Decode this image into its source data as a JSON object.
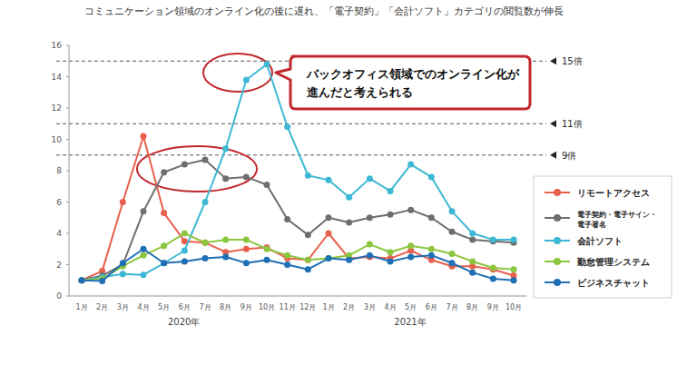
{
  "chart_data": {
    "type": "line",
    "title": "コミュニケーション領域のオンライン化の後に遅れ、「電子契約」「会計ソフト」カテゴリの閲覧数が伸長",
    "categories": [
      "1月",
      "2月",
      "3月",
      "4月",
      "5月",
      "6月",
      "7月",
      "8月",
      "9月",
      "10月",
      "11月",
      "12月",
      "1月",
      "2月",
      "3月",
      "4月",
      "5月",
      "6月",
      "7月",
      "8月",
      "9月",
      "10月"
    ],
    "x_groups": [
      {
        "label": "2020年",
        "from": 0,
        "to": 11
      },
      {
        "label": "2021年",
        "from": 12,
        "to": 21
      }
    ],
    "series": [
      {
        "name": "リモートアクセス",
        "color": "#e8604c",
        "marker": "circle",
        "values": [
          1,
          1.6,
          6,
          10.2,
          5.3,
          3.5,
          3.4,
          2.8,
          3.0,
          3.1,
          2.4,
          2.3,
          4.0,
          2.4,
          2.5,
          2.4,
          2.9,
          2.3,
          1.9,
          1.9,
          1.7,
          1.3
        ]
      },
      {
        "name": "電子契約・電子サイン・電子署名",
        "color": "#6e6e6e",
        "marker": "circle",
        "values": [
          1,
          1.3,
          2.0,
          5.4,
          7.9,
          8.4,
          8.7,
          7.5,
          7.6,
          7.1,
          4.9,
          3.9,
          5.0,
          4.7,
          5.0,
          5.2,
          5.5,
          5.0,
          4.1,
          3.6,
          3.5,
          3.4
        ]
      },
      {
        "name": "会計ソフト",
        "color": "#3db8d4",
        "marker": "circle",
        "values": [
          1,
          1.2,
          1.4,
          1.35,
          2.1,
          2.9,
          6.0,
          9.4,
          13.8,
          14.8,
          10.8,
          7.7,
          7.4,
          6.3,
          7.5,
          6.7,
          8.4,
          7.6,
          5.4,
          4.0,
          3.6,
          3.6
        ]
      },
      {
        "name": "勤怠管理システム",
        "color": "#8cc63f",
        "marker": "circle",
        "values": [
          1,
          1.1,
          1.9,
          2.6,
          3.2,
          4.0,
          3.4,
          3.6,
          3.6,
          3.0,
          2.6,
          2.3,
          2.4,
          2.6,
          3.3,
          2.8,
          3.2,
          3.0,
          2.7,
          2.2,
          1.8,
          1.7
        ]
      },
      {
        "name": "ビジネスチャット",
        "color": "#1f6fb5",
        "marker": "circle",
        "values": [
          1,
          0.95,
          2.1,
          3.0,
          2.1,
          2.2,
          2.4,
          2.5,
          2.1,
          2.3,
          2.0,
          1.7,
          2.4,
          2.3,
          2.6,
          2.2,
          2.5,
          2.6,
          2.1,
          1.5,
          1.1,
          1.0
        ]
      }
    ],
    "ylim": [
      0,
      16
    ],
    "yticks": [
      0,
      2,
      4,
      6,
      8,
      10,
      12,
      14,
      16
    ],
    "grid": false,
    "legend": "right",
    "reference_lines": [
      {
        "value": 15,
        "label": "15倍",
        "line_style": "dashed"
      },
      {
        "value": 11,
        "label": "11倍",
        "line_style": "dashed"
      },
      {
        "value": 9,
        "label": "9倍",
        "line_style": "dashed"
      }
    ],
    "annotations": [
      {
        "lines": [
          "バックオフィス領域でのオンライン化が",
          "進んだと考えられる"
        ],
        "color": "#c0282d"
      }
    ]
  }
}
